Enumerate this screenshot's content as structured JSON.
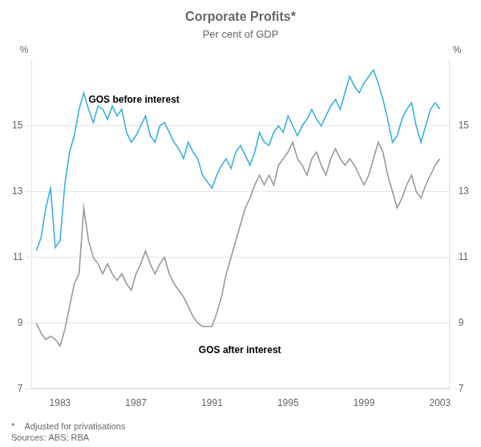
{
  "chart_data": {
    "type": "line",
    "title": "Corporate Profits*",
    "subtitle": "Per cent of GDP",
    "footnote": "*    Adjusted for privatisations\nSources: ABS; RBA",
    "ylabel": "%",
    "y2label": "%",
    "x": [
      1981.75,
      1982,
      1982.25,
      1982.5,
      1982.75,
      1983,
      1983.25,
      1983.5,
      1983.75,
      1984,
      1984.25,
      1984.5,
      1984.75,
      1985,
      1985.25,
      1985.5,
      1985.75,
      1986,
      1986.25,
      1986.5,
      1986.75,
      1987,
      1987.25,
      1987.5,
      1987.75,
      1988,
      1988.25,
      1988.5,
      1988.75,
      1989,
      1989.25,
      1989.5,
      1989.75,
      1990,
      1990.25,
      1990.5,
      1990.75,
      1991,
      1991.25,
      1991.5,
      1991.75,
      1992,
      1992.25,
      1992.5,
      1992.75,
      1993,
      1993.25,
      1993.5,
      1993.75,
      1994,
      1994.25,
      1994.5,
      1994.75,
      1995,
      1995.25,
      1995.5,
      1995.75,
      1996,
      1996.25,
      1996.5,
      1996.75,
      1997,
      1997.25,
      1997.5,
      1997.75,
      1998,
      1998.25,
      1998.5,
      1998.75,
      1999,
      1999.25,
      1999.5,
      1999.75,
      2000,
      2000.25,
      2000.5,
      2000.75,
      2001,
      2001.25,
      2001.5,
      2001.75,
      2002,
      2002.25,
      2002.5,
      2002.75,
      2003
    ],
    "series": [
      {
        "name": "GOS before interest",
        "color": "#3ab0e0",
        "values": [
          11.2,
          11.6,
          12.5,
          13.1,
          11.3,
          11.5,
          13.2,
          14.2,
          14.7,
          15.5,
          16.0,
          15.5,
          15.1,
          15.6,
          15.5,
          15.2,
          15.6,
          15.3,
          15.5,
          14.8,
          14.5,
          14.7,
          15.0,
          15.3,
          14.7,
          14.5,
          15.0,
          15.1,
          14.8,
          14.5,
          14.3,
          14.0,
          14.5,
          14.2,
          14.0,
          13.5,
          13.3,
          13.1,
          13.5,
          13.8,
          14.0,
          13.7,
          14.2,
          14.4,
          14.1,
          13.8,
          14.2,
          14.8,
          14.5,
          14.4,
          14.8,
          15.0,
          14.8,
          15.3,
          15.0,
          14.7,
          15.0,
          15.2,
          15.5,
          15.2,
          15.0,
          15.3,
          15.6,
          15.8,
          15.5,
          16.0,
          16.5,
          16.2,
          16.0,
          16.3,
          16.5,
          16.7,
          16.3,
          15.8,
          15.2,
          14.5,
          14.7,
          15.2,
          15.5,
          15.7,
          15.0,
          14.5,
          15.0,
          15.5,
          15.7,
          15.5
        ]
      },
      {
        "name": "GOS after interest",
        "color": "#999999",
        "values": [
          9.0,
          8.7,
          8.5,
          8.6,
          8.5,
          8.3,
          8.8,
          9.5,
          10.2,
          10.5,
          12.5,
          11.5,
          11.0,
          10.8,
          10.5,
          10.8,
          10.5,
          10.3,
          10.5,
          10.2,
          10.0,
          10.5,
          10.8,
          11.2,
          10.8,
          10.5,
          10.8,
          11.0,
          10.5,
          10.2,
          10.0,
          9.8,
          9.5,
          9.2,
          9.0,
          8.9,
          8.9,
          8.9,
          9.3,
          9.8,
          10.5,
          11.0,
          11.5,
          12.0,
          12.5,
          12.8,
          13.2,
          13.5,
          13.2,
          13.5,
          13.2,
          13.8,
          14.0,
          14.2,
          14.5,
          14.0,
          13.8,
          13.5,
          14.0,
          14.2,
          13.8,
          13.5,
          14.0,
          14.3,
          14.0,
          13.8,
          14.0,
          13.8,
          13.5,
          13.2,
          13.5,
          14.0,
          14.5,
          14.2,
          13.5,
          13.0,
          12.5,
          12.8,
          13.2,
          13.5,
          13.0,
          12.8,
          13.2,
          13.5,
          13.8,
          14.0
        ]
      }
    ],
    "annotations": [
      {
        "text": "GOS before interest",
        "x": 1984.5,
        "y": 15.7
      },
      {
        "text": "GOS after interest",
        "x": 1990.3,
        "y": 8.1
      }
    ],
    "xlim": [
      1981.5,
      2003.5
    ],
    "xticks": [
      1983,
      1987,
      1991,
      1995,
      1999,
      2003
    ],
    "ylim": [
      7,
      17
    ],
    "yticks": [
      7,
      9,
      11,
      13,
      15
    ],
    "y2lim": [
      7,
      17
    ],
    "y2ticks": [
      7,
      9,
      11,
      13,
      15
    ],
    "grid": true
  }
}
